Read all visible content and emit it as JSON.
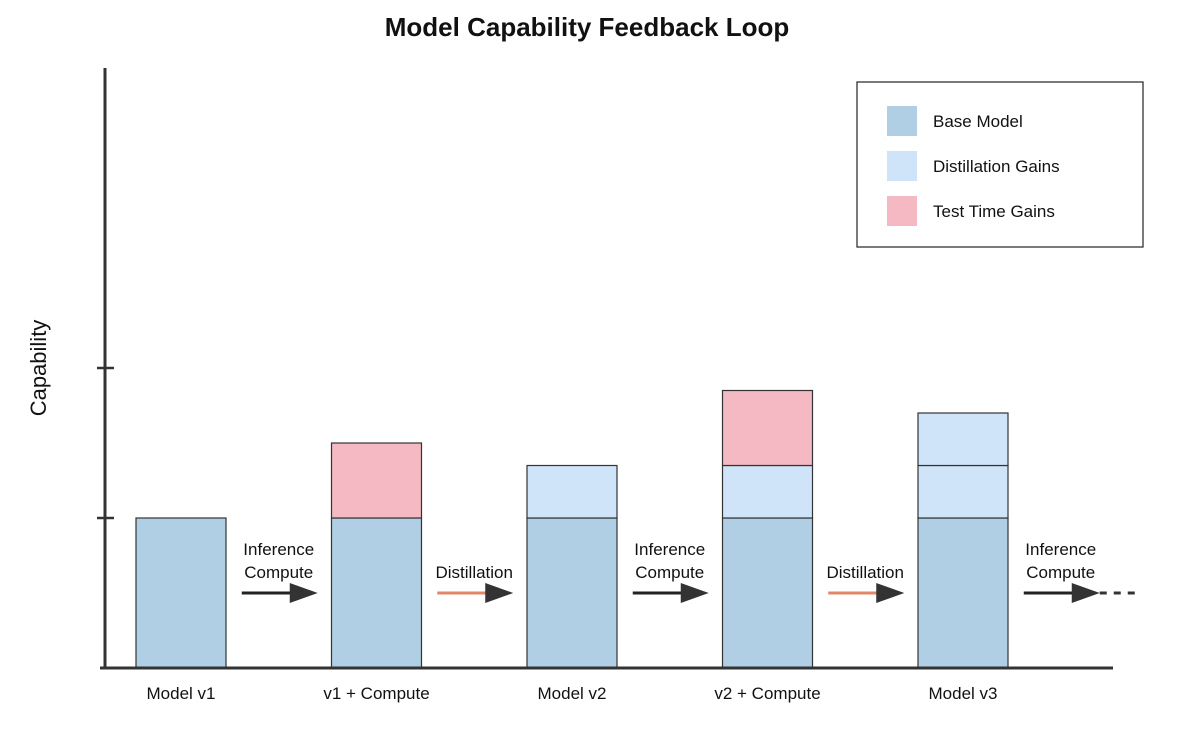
{
  "chart_data": {
    "type": "bar",
    "stacked": true,
    "title": "Model Capability Feedback Loop",
    "ylabel": "Capability",
    "xlabel": "",
    "ylim": [
      0,
      4
    ],
    "yticks": [
      1,
      2
    ],
    "ytick_labels_shown": false,
    "grid": false,
    "legend_position": "top-right",
    "series": [
      {
        "name": "Base Model",
        "color": "#b0cfe4"
      },
      {
        "name": "Distillation Gains",
        "color": "#cfe4f8"
      },
      {
        "name": "Test Time Gains",
        "color": "#f4b9c2"
      }
    ],
    "categories": [
      "Model v1",
      "v1 + Compute",
      "Model v2",
      "v2 + Compute",
      "Model v3"
    ],
    "bars": [
      {
        "label": "Model v1",
        "segments": [
          {
            "series": "Base Model",
            "value": 1
          }
        ]
      },
      {
        "label": "v1 + Compute",
        "segments": [
          {
            "series": "Base Model",
            "value": 1
          },
          {
            "series": "Test Time Gains",
            "value": 0.5
          }
        ]
      },
      {
        "label": "Model v2",
        "segments": [
          {
            "series": "Base Model",
            "value": 1
          },
          {
            "series": "Distillation Gains",
            "value": 0.35
          }
        ]
      },
      {
        "label": "v2 + Compute",
        "segments": [
          {
            "series": "Base Model",
            "value": 1
          },
          {
            "series": "Distillation Gains",
            "value": 0.35
          },
          {
            "series": "Test Time Gains",
            "value": 0.5
          }
        ]
      },
      {
        "label": "Model v3",
        "segments": [
          {
            "series": "Base Model",
            "value": 1
          },
          {
            "series": "Distillation Gains",
            "value": 0.35
          },
          {
            "series": "Distillation Gains",
            "value": 0.35
          }
        ]
      }
    ],
    "transitions": [
      {
        "lines": [
          "Inference",
          "Compute"
        ],
        "line_color": "#222222",
        "continues": false
      },
      {
        "lines": [
          "Distillation"
        ],
        "line_color": "#e0876a",
        "continues": false
      },
      {
        "lines": [
          "Inference",
          "Compute"
        ],
        "line_color": "#222222",
        "continues": false
      },
      {
        "lines": [
          "Distillation"
        ],
        "line_color": "#e0876a",
        "continues": false
      },
      {
        "lines": [
          "Inference",
          "Compute"
        ],
        "line_color": "#222222",
        "continues": true
      }
    ]
  }
}
